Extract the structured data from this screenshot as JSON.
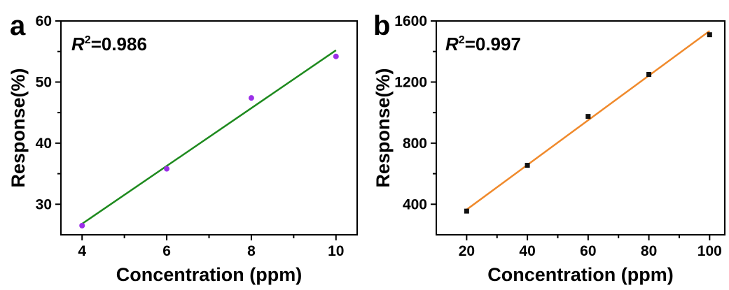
{
  "chart_data": [
    {
      "type": "scatter",
      "panel": "a",
      "annotation": {
        "symbol": "R",
        "superscript": "2",
        "value": "=0.986"
      },
      "xlabel": "Concentration (ppm)",
      "ylabel": "Response(%)",
      "xlim": [
        3.5,
        10.5
      ],
      "ylim": [
        25,
        60
      ],
      "xticks": [
        4,
        6,
        8,
        10
      ],
      "yticks": [
        30,
        40,
        50,
        60
      ],
      "marker_color": "#9b30e8",
      "fit_color": "#1e8a1e",
      "marker": "circle",
      "points": [
        {
          "x": 4,
          "y": 26.5
        },
        {
          "x": 6,
          "y": 35.8
        },
        {
          "x": 8,
          "y": 47.4
        },
        {
          "x": 10,
          "y": 54.2
        }
      ],
      "fit_line": {
        "x": [
          4,
          10
        ],
        "y": [
          26.8,
          55.2
        ]
      }
    },
    {
      "type": "scatter",
      "panel": "b",
      "annotation": {
        "symbol": "R",
        "superscript": "2",
        "value": "=0.997"
      },
      "xlabel": "Concentration (ppm)",
      "ylabel": "Response(%)",
      "xlim": [
        10,
        105
      ],
      "ylim": [
        200,
        1600
      ],
      "xticks": [
        20,
        40,
        60,
        80,
        100
      ],
      "yticks": [
        400,
        800,
        1200,
        1600
      ],
      "marker_color": "#111111",
      "fit_color": "#f08a2c",
      "marker": "square",
      "points": [
        {
          "x": 20,
          "y": 355
        },
        {
          "x": 40,
          "y": 655
        },
        {
          "x": 60,
          "y": 975
        },
        {
          "x": 80,
          "y": 1250
        },
        {
          "x": 100,
          "y": 1510
        }
      ],
      "fit_line": {
        "x": [
          20,
          100
        ],
        "y": [
          365,
          1535
        ]
      }
    }
  ]
}
